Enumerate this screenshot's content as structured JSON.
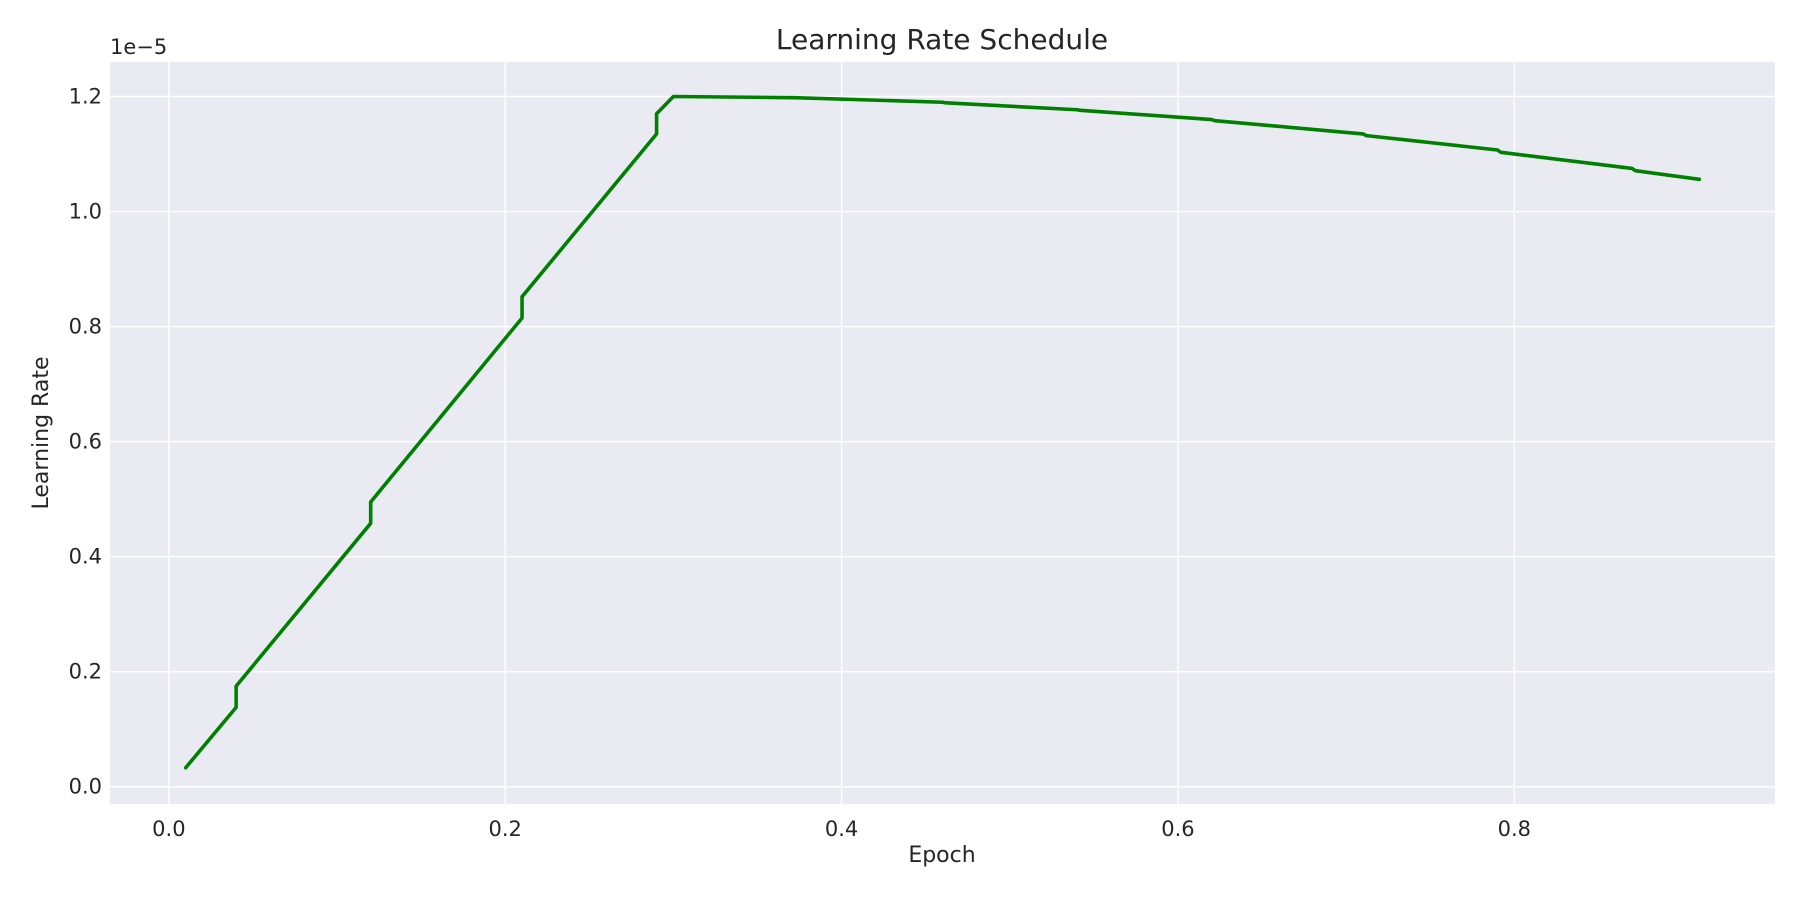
{
  "chart_data": {
    "type": "line",
    "title": "Learning Rate Schedule",
    "xlabel": "Epoch",
    "ylabel": "Learning Rate",
    "y_offset_label": "1e−5",
    "y_scale_multiplier": 1e-05,
    "xlim": [
      -0.035,
      0.955
    ],
    "ylim": [
      -0.03,
      1.26
    ],
    "x_ticks": [
      0.0,
      0.2,
      0.4,
      0.6,
      0.8
    ],
    "x_tick_labels": [
      "0.0",
      "0.2",
      "0.4",
      "0.6",
      "0.8"
    ],
    "y_ticks": [
      0.0,
      0.2,
      0.4,
      0.6,
      0.8,
      1.0,
      1.2
    ],
    "y_tick_labels": [
      "0.0",
      "0.2",
      "0.4",
      "0.6",
      "0.8",
      "1.0",
      "1.2"
    ],
    "grid": true,
    "series": [
      {
        "color": "#008000",
        "points": [
          [
            0.01,
            0.033
          ],
          [
            0.04,
            0.138
          ],
          [
            0.04,
            0.175
          ],
          [
            0.12,
            0.458
          ],
          [
            0.12,
            0.495
          ],
          [
            0.21,
            0.815
          ],
          [
            0.21,
            0.852
          ],
          [
            0.29,
            1.135
          ],
          [
            0.29,
            1.17
          ],
          [
            0.3,
            1.2
          ],
          [
            0.37,
            1.198
          ],
          [
            0.372,
            1.198
          ],
          [
            0.46,
            1.19
          ],
          [
            0.462,
            1.189
          ],
          [
            0.54,
            1.177
          ],
          [
            0.542,
            1.176
          ],
          [
            0.62,
            1.16
          ],
          [
            0.622,
            1.158
          ],
          [
            0.71,
            1.135
          ],
          [
            0.712,
            1.132
          ],
          [
            0.79,
            1.107
          ],
          [
            0.792,
            1.103
          ],
          [
            0.87,
            1.075
          ],
          [
            0.872,
            1.071
          ],
          [
            0.91,
            1.056
          ]
        ]
      }
    ]
  },
  "colors": {
    "plot_background": "#eaeaf2",
    "grid": "#ffffff",
    "text": "#262626",
    "line": "#008000"
  }
}
